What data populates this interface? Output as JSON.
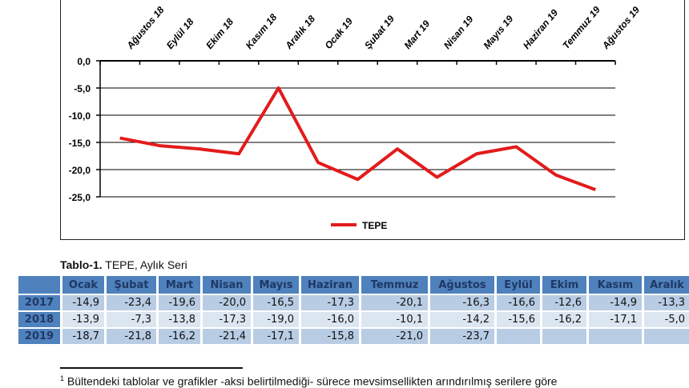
{
  "chart_data": {
    "type": "line",
    "categories": [
      "Ağustos 18",
      "Eylül 18",
      "Ekim 18",
      "Kasım 18",
      "Aralık 18",
      "Ocak 19",
      "Şubat 19",
      "Mart 19",
      "Nisan 19",
      "Mayıs 19",
      "Haziran 19",
      "Temmuz 19",
      "Ağustos 19"
    ],
    "series": [
      {
        "name": "TEPE",
        "values": [
          -14.2,
          -15.6,
          -16.2,
          -17.1,
          -5.0,
          -18.7,
          -21.8,
          -16.2,
          -21.4,
          -17.1,
          -15.8,
          -21.0,
          -23.7
        ],
        "color": "#e31b1b"
      }
    ],
    "ylim": [
      -25,
      0
    ],
    "yticks": [
      "0,0",
      "-5,0",
      "-10,0",
      "-15,0",
      "-20,0",
      "-25,0"
    ],
    "grid": true,
    "legend": "bottom"
  },
  "table": {
    "title_bold": "Tablo-1.",
    "title_rest": " TEPE, Aylık Seri",
    "headers": [
      "",
      "Ocak",
      "Şubat",
      "Mart",
      "Nisan",
      "Mayıs",
      "Haziran",
      "Temmuz",
      "Ağustos",
      "Eylül",
      "Ekim",
      "Kasım",
      "Aralık"
    ],
    "rows": [
      {
        "year": "2017",
        "values": [
          "-14,9",
          "-23,4",
          "-19,6",
          "-20,0",
          "-16,5",
          "-17,3",
          "-20,1",
          "-16,3",
          "-16,6",
          "-12,6",
          "-14,9",
          "-13,3"
        ]
      },
      {
        "year": "2018",
        "values": [
          "-13,9",
          "-7,3",
          "-13,8",
          "-17,3",
          "-19,0",
          "-16,0",
          "-10,1",
          "-14,2",
          "-15,6",
          "-16,2",
          "-17,1",
          "-5,0"
        ]
      },
      {
        "year": "2019",
        "values": [
          "-18,7",
          "-21,8",
          "-16,2",
          "-21,4",
          "-17,1",
          "-15,8",
          "-21,0",
          "-23,7",
          "",
          "",
          "",
          ""
        ]
      }
    ]
  },
  "footnote": {
    "mark": "1",
    "text": " Bültendeki tablolar ve grafikler -aksi belirtilmediği- sürece mevsimsellikten arındırılmış serilere göre"
  }
}
